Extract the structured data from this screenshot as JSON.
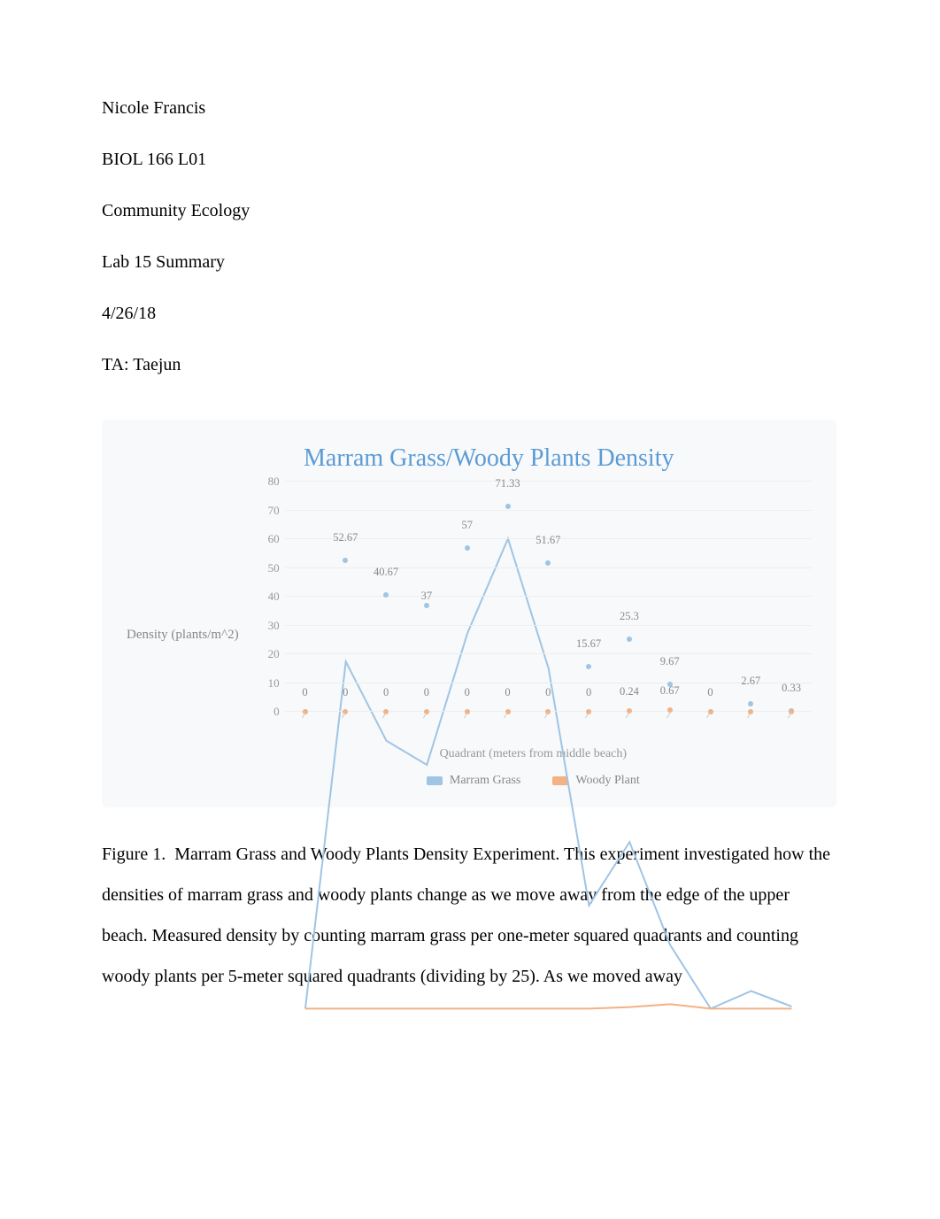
{
  "header": {
    "name": "Nicole Francis",
    "course": "BIOL 166 L01",
    "topic": "Community Ecology",
    "lab": "Lab 15 Summary",
    "date": "4/26/18",
    "ta": "TA: Taejun"
  },
  "chart": {
    "type": "line",
    "title": "Marram Grass/Woody Plants Density",
    "title_color": "#5b9bd5",
    "title_fontsize": 28,
    "background_color": "#f7f9fa",
    "grid_color": "#eeeeee",
    "label_color": "#888888",
    "tick_color": "#999999",
    "ylabel": "Density (plants/m^2)",
    "xlabel": "Quadrant (meters from middle beach)",
    "ylim": [
      0,
      80
    ],
    "ytick_step": 10,
    "yticks": [
      0,
      10,
      20,
      30,
      40,
      50,
      60,
      70,
      80
    ],
    "n_points": 13,
    "point_radius": 3,
    "line_width": 2,
    "label_fontsize": 13,
    "series": [
      {
        "name": "Marram Grass",
        "color": "#a0c4e4",
        "line_color": "#a0c4e4",
        "values": [
          0,
          52.67,
          40.67,
          37,
          57,
          71.33,
          51.67,
          15.67,
          25.3,
          9.67,
          0,
          2.67,
          0.33
        ],
        "display_labels": [
          "0",
          "52.67",
          "40.67",
          "37",
          "57",
          "71.33",
          "51.67",
          "15.67",
          "25.3",
          "9.67",
          "0",
          "2.67",
          "0.33"
        ],
        "label_y_offsets": [
          0,
          -18,
          -18,
          -3,
          -18,
          -18,
          -18,
          -18,
          -18,
          -18,
          0,
          -18,
          -18
        ],
        "label_show": [
          false,
          true,
          true,
          true,
          true,
          true,
          true,
          true,
          true,
          true,
          false,
          true,
          true
        ]
      },
      {
        "name": "Woody Plant",
        "color": "#f4b183",
        "line_color": "#f4b183",
        "values": [
          0,
          0,
          0,
          0,
          0,
          0,
          0,
          0,
          0.24,
          0.67,
          0,
          0,
          0
        ],
        "display_labels": [
          "0",
          "0",
          "0",
          "0",
          "0",
          "0",
          "0",
          "0",
          "0.24",
          "0.67",
          "0",
          "",
          ""
        ],
        "label_y_offsets": [
          -14,
          -14,
          -14,
          -14,
          -14,
          -14,
          -14,
          -14,
          -14,
          -14,
          -14,
          0,
          0
        ],
        "label_show": [
          true,
          true,
          true,
          true,
          true,
          true,
          true,
          true,
          true,
          true,
          true,
          false,
          false
        ]
      }
    ],
    "legend": {
      "position": "bottom",
      "items": [
        {
          "label": "Marram Grass",
          "color": "#a0c4e4"
        },
        {
          "label": "Woody Plant",
          "color": "#f4b183"
        }
      ]
    }
  },
  "caption": {
    "prefix": "Figure 1.",
    "text": "Marram Grass and Woody Plants Density Experiment. This experiment investigated how the densities of marram grass and woody plants change as we move away from the edge of the upper beach. Measured density by counting marram grass per one-meter squared quadrants and counting woody plants per 5-meter squared quadrants (dividing by 25). As we moved away"
  }
}
